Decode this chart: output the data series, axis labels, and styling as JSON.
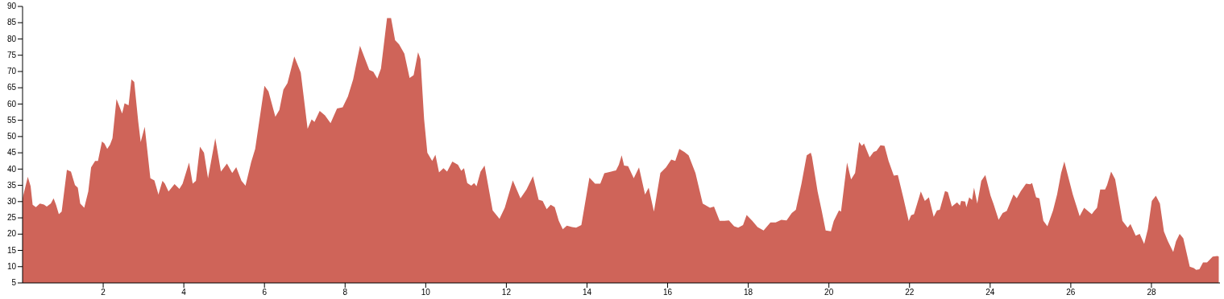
{
  "chart_data": {
    "type": "area",
    "xlim": [
      0,
      29.7
    ],
    "ylim": [
      5,
      90
    ],
    "xticks": [
      2,
      4,
      6,
      8,
      10,
      12,
      14,
      16,
      18,
      20,
      22,
      24,
      26,
      28
    ],
    "yticks": [
      5,
      10,
      15,
      20,
      25,
      30,
      35,
      40,
      45,
      50,
      55,
      60,
      65,
      70,
      75,
      80,
      85,
      90
    ],
    "grid": false,
    "series": [
      {
        "color": "#cf6459",
        "x": [
          0,
          0.13,
          0.2,
          0.25,
          0.33,
          0.43,
          0.53,
          0.6,
          0.7,
          0.77,
          0.83,
          0.9,
          0.97,
          1.1,
          1.2,
          1.3,
          1.37,
          1.43,
          1.53,
          1.63,
          1.7,
          1.8,
          1.87,
          1.97,
          2.03,
          2.1,
          2.17,
          2.23,
          2.33,
          2.47,
          2.53,
          2.63,
          2.7,
          2.77,
          2.87,
          2.93,
          3.03,
          3.17,
          3.27,
          3.37,
          3.47,
          3.53,
          3.62,
          3.77,
          3.89,
          3.97,
          4.13,
          4.22,
          4.3,
          4.4,
          4.5,
          4.6,
          4.78,
          4.92,
          5.07,
          5.2,
          5.3,
          5.43,
          5.53,
          5.67,
          5.77,
          6.0,
          6.1,
          6.27,
          6.37,
          6.47,
          6.57,
          6.74,
          6.9,
          7.07,
          7.17,
          7.24,
          7.37,
          7.5,
          7.64,
          7.8,
          7.94,
          8.07,
          8.2,
          8.37,
          8.6,
          8.7,
          8.8,
          8.89,
          9.04,
          9.14,
          9.24,
          9.34,
          9.47,
          9.6,
          9.7,
          9.81,
          9.87,
          9.96,
          10.04,
          10.16,
          10.24,
          10.33,
          10.44,
          10.53,
          10.66,
          10.8,
          10.88,
          10.95,
          11.03,
          11.13,
          11.2,
          11.26,
          11.36,
          11.46,
          11.66,
          11.83,
          11.96,
          12.16,
          12.35,
          12.5,
          12.66,
          12.8,
          12.9,
          13.0,
          13.1,
          13.2,
          13.3,
          13.4,
          13.5,
          13.63,
          13.73,
          13.86,
          14.06,
          14.2,
          14.33,
          14.43,
          14.6,
          14.72,
          14.79,
          14.86,
          14.92,
          15.02,
          15.16,
          15.29,
          15.44,
          15.53,
          15.66,
          15.82,
          15.96,
          16.09,
          16.19,
          16.29,
          16.42,
          16.52,
          16.69,
          16.87,
          17.05,
          17.15,
          17.29,
          17.41,
          17.52,
          17.65,
          17.75,
          17.87,
          17.96,
          18.1,
          18.23,
          18.38,
          18.55,
          18.68,
          18.82,
          18.95,
          19.08,
          19.18,
          19.32,
          19.45,
          19.55,
          19.58,
          19.72,
          19.82,
          19.92,
          20.05,
          20.12,
          20.25,
          20.3,
          20.45,
          20.55,
          20.65,
          20.75,
          20.82,
          20.87,
          21.01,
          21.11,
          21.18,
          21.28,
          21.38,
          21.48,
          21.61,
          21.71,
          21.85,
          21.98,
          22.04,
          22.11,
          22.28,
          22.38,
          22.48,
          22.6,
          22.68,
          22.75,
          22.88,
          22.95,
          23.05,
          23.18,
          23.25,
          23.28,
          23.38,
          23.41,
          23.48,
          23.55,
          23.6,
          23.68,
          23.78,
          23.88,
          24.01,
          24.08,
          24.21,
          24.31,
          24.41,
          24.58,
          24.66,
          24.76,
          24.89,
          24.99,
          25.04,
          25.14,
          25.22,
          25.32,
          25.42,
          25.56,
          25.66,
          25.76,
          25.84,
          25.92,
          26.05,
          26.22,
          26.33,
          26.52,
          26.58,
          26.65,
          26.73,
          26.85,
          26.9,
          27.0,
          27.1,
          27.28,
          27.41,
          27.48,
          27.61,
          27.71,
          27.82,
          27.91,
          28.01,
          28.11,
          28.21,
          28.31,
          28.41,
          28.54,
          28.61,
          28.7,
          28.79,
          28.95,
          29.05,
          29.11,
          29.19,
          29.28,
          29.38,
          29.52,
          29.64,
          29.67
        ],
        "values": [
          31,
          37.6,
          34.7,
          29,
          28.3,
          29.4,
          29.1,
          28.5,
          29.4,
          31,
          29,
          26.1,
          26.9,
          39.8,
          39.2,
          35.1,
          34.3,
          29.4,
          28.1,
          33.1,
          40.5,
          42.5,
          42.5,
          48.5,
          47.9,
          46.2,
          47.5,
          49.5,
          61.5,
          57.1,
          60.2,
          59.6,
          67.6,
          66.8,
          54.5,
          48.3,
          53,
          37.2,
          36.5,
          32.2,
          36.4,
          35.5,
          33.1,
          35.4,
          33.9,
          35.5,
          42,
          35.5,
          36.4,
          46.9,
          45,
          37.2,
          49.5,
          39.2,
          41.7,
          38.8,
          40.6,
          36.4,
          34.9,
          42.1,
          46.2,
          65.6,
          63.9,
          56.1,
          58.2,
          64.4,
          66.4,
          74.6,
          69.7,
          52.4,
          55.3,
          54.5,
          57.9,
          56.5,
          54.1,
          58.6,
          59,
          62.3,
          67.6,
          77.9,
          70.5,
          69.9,
          67.8,
          70.9,
          86.4,
          86.4,
          79.6,
          78.3,
          75.5,
          68,
          68.9,
          75.9,
          73.8,
          55.3,
          45,
          42.5,
          44.4,
          39,
          40.3,
          39.2,
          42.3,
          41.3,
          39.5,
          40.3,
          35.7,
          34.9,
          35.7,
          34.7,
          39.2,
          41.1,
          27.3,
          24.7,
          28.1,
          36.5,
          31,
          33.7,
          37.8,
          30.6,
          30.2,
          27.7,
          29,
          28.3,
          24.1,
          21.5,
          22.6,
          22.2,
          22,
          22.8,
          37.4,
          35.5,
          35.5,
          38.7,
          39.2,
          39.6,
          41.3,
          44.2,
          41.1,
          40.9,
          37.2,
          40.5,
          32.2,
          34.3,
          26.9,
          38.8,
          40.5,
          42.9,
          42.5,
          46.2,
          45.2,
          44.2,
          38.8,
          29.4,
          28.1,
          28.5,
          24.1,
          24.1,
          24.2,
          22.4,
          22,
          22.8,
          25.9,
          24.1,
          22.2,
          21.1,
          23.6,
          23.6,
          24.4,
          24.2,
          26.5,
          27.5,
          35.5,
          44.2,
          45,
          43.8,
          33.1,
          27.3,
          21.1,
          20.9,
          24,
          27.3,
          26.9,
          42,
          36.8,
          38.8,
          48.3,
          47.1,
          47.9,
          43.6,
          45.3,
          45.6,
          47.3,
          47.1,
          42.5,
          38,
          38.2,
          31,
          24,
          25.8,
          26.1,
          33.1,
          30.2,
          31.3,
          25.3,
          27.3,
          27.5,
          33.2,
          32.9,
          28.5,
          29.8,
          28.8,
          30.2,
          30,
          28.3,
          31.3,
          30.5,
          34.3,
          29.4,
          36.4,
          38.2,
          31.8,
          29.4,
          24.4,
          26.5,
          27.1,
          32.2,
          31,
          33.2,
          35.5,
          35.3,
          35.7,
          31.3,
          31,
          24.1,
          22.4,
          27.3,
          32.2,
          38.8,
          42.3,
          38.4,
          32.2,
          25.5,
          28.1,
          26.1,
          27.1,
          28.1,
          33.7,
          33.7,
          35.1,
          39.2,
          36.9,
          24.1,
          22,
          23.1,
          19.5,
          20.1,
          17,
          21.5,
          30.2,
          31.8,
          29.4,
          20.8,
          17.8,
          14.5,
          17.8,
          20.1,
          18.7,
          10,
          9.6,
          9,
          9.2,
          11.3,
          11.3,
          13.1,
          13.3,
          13.1
        ]
      }
    ]
  }
}
